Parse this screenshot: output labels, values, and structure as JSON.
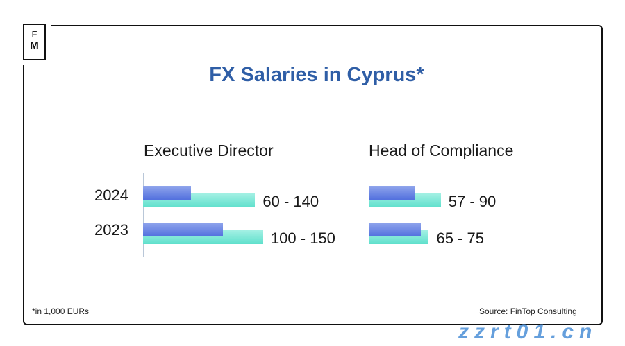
{
  "logo": {
    "line1": "F",
    "line2": "M"
  },
  "watermark": "zzrt01.cn",
  "chart_data": {
    "type": "bar",
    "orientation": "horizontal",
    "title": "FX Salaries in Cyprus*",
    "categories": [
      "2024",
      "2023"
    ],
    "unit_note": "*in 1,000 EURs",
    "source": "Source: FinTop Consulting",
    "colors": {
      "min": "#5a78e0",
      "max": "#6ee3cf",
      "title": "#2f5ea6"
    },
    "groups": [
      {
        "name": "Executive Director",
        "ranges": [
          {
            "year": "2024",
            "min": 60,
            "max": 140,
            "label": "60 - 140"
          },
          {
            "year": "2023",
            "min": 100,
            "max": 150,
            "label": "100 - 150"
          }
        ]
      },
      {
        "name": "Head of Compliance",
        "ranges": [
          {
            "year": "2024",
            "min": 57,
            "max": 90,
            "label": "57 - 90"
          },
          {
            "year": "2023",
            "min": 65,
            "max": 75,
            "label": "65 - 75"
          }
        ]
      }
    ]
  }
}
